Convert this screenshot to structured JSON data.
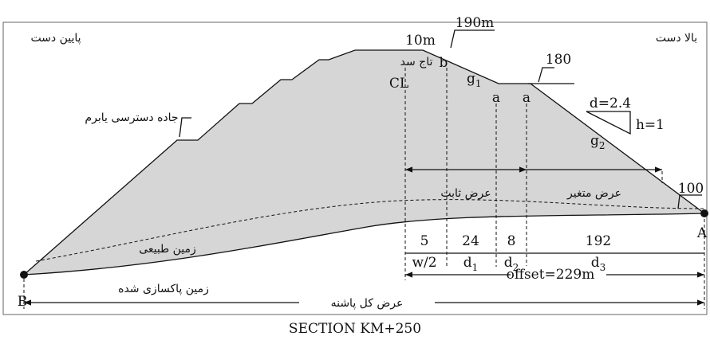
{
  "header": {
    "downstream": "پایین دست",
    "upstream": "بالا دست"
  },
  "crest": {
    "width": "10m",
    "level": "190m",
    "name": "تاج سد",
    "point_b": "b",
    "centerline": "CL",
    "slope1": {
      "base": "g",
      "sub": "1"
    }
  },
  "berm": {
    "point_a1": "a",
    "point_a2": "a",
    "level": "180",
    "access_road": "جاده دسترسی یابرم"
  },
  "slope2": {
    "d": "d=2.4",
    "h": "h=1",
    "label": {
      "base": "g",
      "sub": "2"
    }
  },
  "toe": {
    "level": "100",
    "point_a": "A",
    "point_b": "B"
  },
  "ground": {
    "natural": "زمین طبیعی",
    "cleared": "زمین پاکسازی شده"
  },
  "widths": {
    "fixed": "عرض ثابت",
    "variable": "عرض متغیر"
  },
  "dimensions": {
    "values": [
      "5",
      "24",
      "8",
      "192"
    ],
    "labels": [
      {
        "base": "w/2",
        "sub": ""
      },
      {
        "base": "d",
        "sub": "1"
      },
      {
        "base": "d",
        "sub": "2"
      },
      {
        "base": "d",
        "sub": "3"
      }
    ],
    "offset": "offset=229m",
    "total": "عرض کل پاشنه"
  },
  "footer": {
    "title": "SECTION KM+250"
  }
}
